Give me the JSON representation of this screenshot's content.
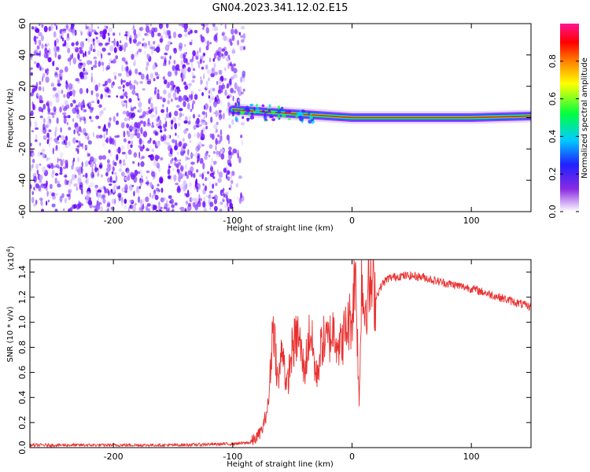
{
  "title": "GN04.2023.341.12.02.E15",
  "colors": {
    "waterfall_purple": "#6a00ff",
    "snr_line": "#e8302f",
    "axis": "#000000"
  },
  "chart_data": [
    {
      "type": "heatmap",
      "title": "GN04.2023.341.12.02.E15",
      "xlabel": "Height of straight line (km)",
      "ylabel": "Frequency (Hz)",
      "xlim": [
        -270,
        150
      ],
      "ylim": [
        -60,
        60
      ],
      "xticks": [
        -200,
        -100,
        0,
        100
      ],
      "yticks": [
        -60,
        -40,
        -20,
        0,
        20,
        40,
        60
      ],
      "xtick_labels": [
        "-200",
        "-100",
        "0",
        "100"
      ],
      "ytick_labels": [
        "-60",
        "-40",
        "-20",
        "0",
        "20",
        "40",
        "60"
      ],
      "noise_region": {
        "x": [
          -270,
          -90
        ],
        "frequency": [
          -60,
          60
        ]
      },
      "signal_track": [
        {
          "x": -100,
          "frequency": 5
        },
        {
          "x": -80,
          "frequency": 4
        },
        {
          "x": -60,
          "frequency": 3
        },
        {
          "x": -40,
          "frequency": 2
        },
        {
          "x": -20,
          "frequency": 1
        },
        {
          "x": 0,
          "frequency": 0
        },
        {
          "x": 50,
          "frequency": 0
        },
        {
          "x": 100,
          "frequency": 0
        },
        {
          "x": 150,
          "frequency": 1
        }
      ],
      "colorbar": {
        "label": "Normalized spectral amplitude",
        "range": [
          0,
          1
        ],
        "ticks": [
          0.0,
          0.2,
          0.4,
          0.6,
          0.8
        ],
        "tick_labels": [
          "0.0",
          "0.2",
          "0.4",
          "0.6",
          "0.8"
        ]
      },
      "grid": false
    },
    {
      "type": "line",
      "xlabel": "Height of straight line (km)",
      "ylabel": "SNR (10 * v/v)",
      "y_multiplier": "(x10",
      "y_multiplier_exp": "4",
      "y_multiplier_close": ")",
      "xlim": [
        -270,
        150
      ],
      "ylim": [
        0,
        1.5
      ],
      "xticks": [
        -200,
        -100,
        0,
        100
      ],
      "yticks": [
        0.0,
        0.2,
        0.4,
        0.6,
        0.8,
        1.0,
        1.2,
        1.4
      ],
      "xtick_labels": [
        "-200",
        "-100",
        "0",
        "100"
      ],
      "ytick_labels": [
        "0.0",
        "0.2",
        "0.4",
        "0.6",
        "0.8",
        "1.0",
        "1.2",
        "1.4"
      ],
      "series": [
        {
          "x": [
            -270,
            -150,
            -100,
            -85,
            -80,
            -75,
            -70,
            -66,
            -62,
            -58,
            -55,
            -50,
            -45,
            -40,
            -35,
            -30,
            -25,
            -20,
            -15,
            -10,
            -5,
            0,
            3,
            6,
            8,
            10,
            15,
            20,
            25,
            30,
            40,
            50,
            60,
            70,
            80,
            90,
            100,
            110,
            120,
            130,
            140,
            150
          ],
          "y": [
            0.02,
            0.02,
            0.03,
            0.04,
            0.08,
            0.15,
            0.35,
            1.03,
            0.5,
            0.85,
            0.45,
            0.8,
            0.9,
            0.6,
            0.95,
            0.55,
            0.85,
            0.85,
            0.95,
            0.8,
            0.95,
            1.05,
            1.45,
            0.3,
            1.4,
            1.1,
            1.3,
            1.2,
            1.3,
            1.35,
            1.37,
            1.37,
            1.36,
            1.33,
            1.31,
            1.29,
            1.27,
            1.24,
            1.21,
            1.18,
            1.15,
            1.12
          ]
        }
      ],
      "grid": false
    }
  ]
}
